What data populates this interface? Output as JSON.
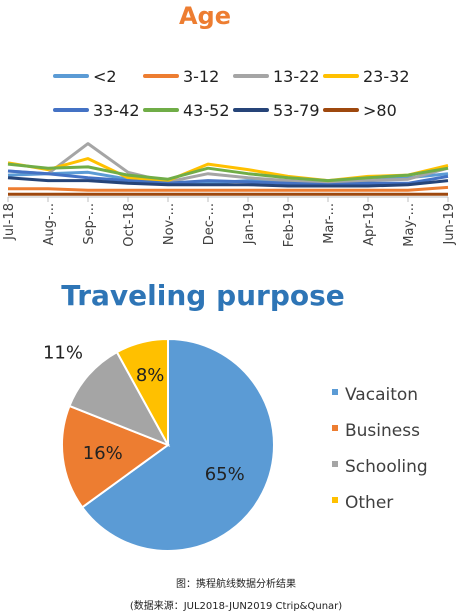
{
  "chart_data": [
    {
      "type": "line",
      "title": "Age",
      "legend_position": "top",
      "grid": false,
      "categories": [
        "Jul-18",
        "Aug-...",
        "Sep-...",
        "Oct-18",
        "Nov-...",
        "Dec-...",
        "Jan-19",
        "Feb-19",
        "Mar-...",
        "Apr-19",
        "May-...",
        "Jun-19"
      ],
      "ylim": [
        0,
        1
      ],
      "series": [
        {
          "name": "<2",
          "color": "#5B9BD5",
          "values": [
            0.16,
            0.17,
            0.18,
            0.13,
            0.11,
            0.1,
            0.12,
            0.11,
            0.1,
            0.12,
            0.14,
            0.17
          ]
        },
        {
          "name": "3-12",
          "color": "#ED7D31",
          "values": [
            0.06,
            0.06,
            0.05,
            0.05,
            0.05,
            0.05,
            0.05,
            0.05,
            0.05,
            0.05,
            0.05,
            0.07
          ]
        },
        {
          "name": "13-22",
          "color": "#A5A5A5",
          "values": [
            0.19,
            0.17,
            0.39,
            0.18,
            0.11,
            0.17,
            0.14,
            0.12,
            0.1,
            0.12,
            0.13,
            0.21
          ]
        },
        {
          "name": "23-32",
          "color": "#FFC000",
          "values": [
            0.25,
            0.2,
            0.28,
            0.14,
            0.12,
            0.24,
            0.2,
            0.15,
            0.12,
            0.15,
            0.16,
            0.23
          ]
        },
        {
          "name": "33-42",
          "color": "#4472C4",
          "values": [
            0.19,
            0.17,
            0.14,
            0.12,
            0.1,
            0.12,
            0.11,
            0.1,
            0.09,
            0.1,
            0.1,
            0.15
          ]
        },
        {
          "name": "43-52",
          "color": "#70AD47",
          "values": [
            0.24,
            0.21,
            0.22,
            0.16,
            0.13,
            0.21,
            0.17,
            0.14,
            0.12,
            0.14,
            0.16,
            0.21
          ]
        },
        {
          "name": "53-79",
          "color": "#264478",
          "values": [
            0.14,
            0.12,
            0.12,
            0.1,
            0.09,
            0.09,
            0.09,
            0.08,
            0.08,
            0.08,
            0.09,
            0.12
          ]
        },
        {
          "name": ">80",
          "color": "#9E480E",
          "values": [
            0.02,
            0.02,
            0.02,
            0.02,
            0.02,
            0.02,
            0.02,
            0.02,
            0.02,
            0.02,
            0.02,
            0.02
          ]
        }
      ]
    },
    {
      "type": "pie",
      "title": "Traveling purpose",
      "legend_position": "right",
      "series": [
        {
          "name": "Vacaiton",
          "label": "65%",
          "value": 65,
          "color": "#5B9BD5"
        },
        {
          "name": "Business",
          "label": "16%",
          "value": 16,
          "color": "#ED7D31"
        },
        {
          "name": "Schooling",
          "label": "11%",
          "value": 11,
          "color": "#A5A5A5"
        },
        {
          "name": "Other",
          "label": "8%",
          "value": 8,
          "color": "#FFC000"
        }
      ]
    }
  ],
  "caption": {
    "line1": "图：携程航线数据分析结果",
    "line2": "(数据来源：JUL2018-JUN2019 Ctrip&Qunar)"
  }
}
